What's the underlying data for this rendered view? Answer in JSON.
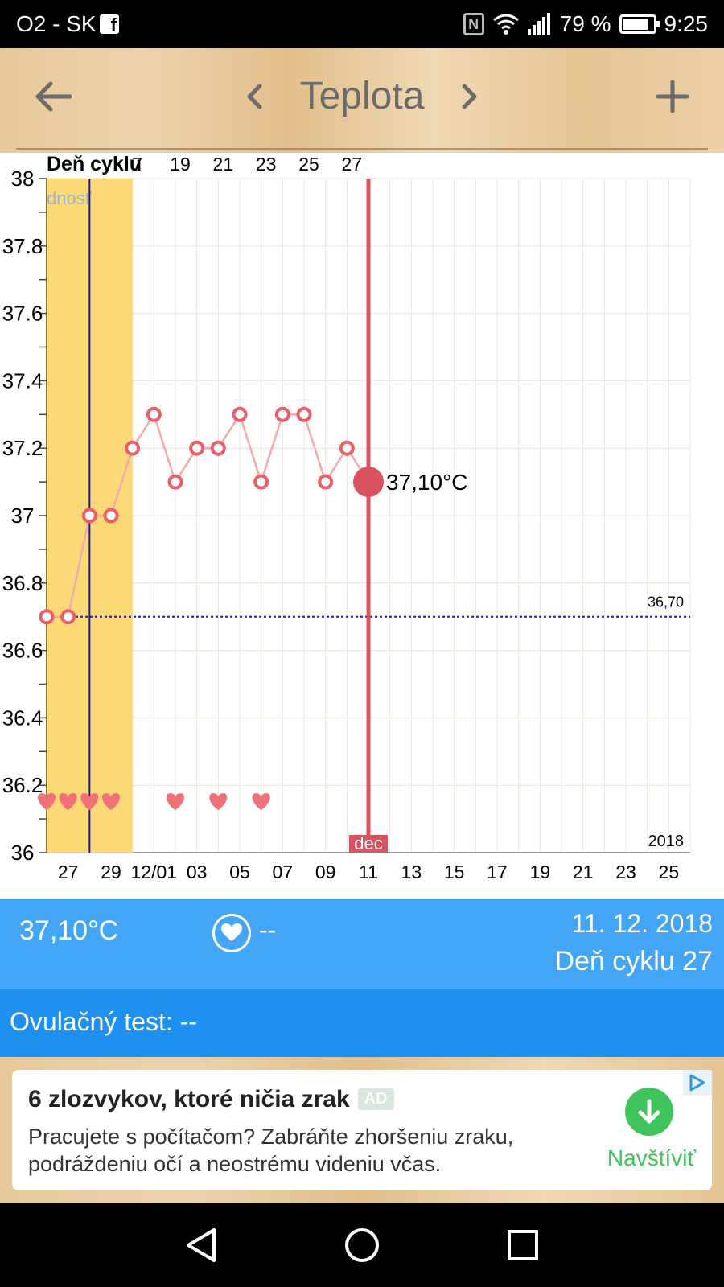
{
  "status_bar": {
    "carrier": "O2 - SK",
    "battery_percent": "79 %",
    "battery_level": 0.79,
    "time": "9:25",
    "icons": [
      "facebook-icon",
      "nfc-icon",
      "wifi-icon",
      "signal-icon",
      "battery-icon"
    ]
  },
  "toolbar": {
    "title": "Teplota",
    "back_icon": "arrow-left-icon",
    "prev_icon": "chevron-left-icon",
    "next_icon": "chevron-right-icon",
    "add_icon": "plus-icon"
  },
  "chart_data": {
    "type": "line",
    "top_label": "Deň cyklu",
    "cycle_day_labels": [
      "7",
      "19",
      "21",
      "23",
      "25",
      "27"
    ],
    "fertile_label": "dnosť",
    "ylim": [
      36,
      38
    ],
    "y_ticks": [
      "38",
      "37.8",
      "37.6",
      "37.4",
      "37.2",
      "37",
      "36.8",
      "36.6",
      "36.4",
      "36.2",
      "36"
    ],
    "x_tick_labels": [
      "27",
      "29",
      "12/01",
      "03",
      "05",
      "07",
      "09",
      "11",
      "13",
      "15",
      "17",
      "19",
      "21",
      "23",
      "25"
    ],
    "month_label": "dec",
    "year_label": "2018",
    "coverline_value": 36.7,
    "coverline_label": "36,70",
    "selected_label": "37,10°C",
    "series": [
      {
        "x_day": [
          26,
          27,
          28,
          29,
          30,
          31,
          32,
          33,
          34,
          35,
          36,
          37,
          38,
          39,
          40,
          41
        ],
        "values": [
          36.7,
          36.7,
          37.0,
          37.0,
          37.2,
          37.3,
          37.1,
          37.2,
          37.2,
          37.3,
          37.1,
          37.3,
          37.3,
          37.1,
          37.2,
          37.1
        ]
      }
    ],
    "hearts_x_day": [
      26,
      27,
      28,
      29,
      32,
      34,
      36
    ],
    "selected_x_day": 41,
    "fertile_range_x_day": [
      26,
      29
    ],
    "ovulation_x_day": 28,
    "x_range_day": [
      26,
      56
    ],
    "colors": {
      "line": "#f4a9aa",
      "point": "#ee5c66",
      "selected": "#d9535f",
      "fertile": "#fbd976",
      "coverline": "#1f1f8f",
      "ovulation": "#1a1aa0"
    }
  },
  "info_bar": {
    "temperature": "37,10°C",
    "sex_value": "--",
    "date": "11. 12. 2018",
    "cycle_day": "Deň cyklu 27"
  },
  "ovulation_test": {
    "label": "Ovulačný test: --"
  },
  "ad": {
    "title": "6 zlozvykov, ktoré ničia zrak",
    "badge": "AD",
    "body": "Pracujete s počítačom? Zabráňte zhoršeniu zraku, podráždeniu očí a neostrému videniu včas.",
    "action": "Navštíviť"
  },
  "nav_bar": {
    "icons": [
      "back-triangle-icon",
      "home-circle-icon",
      "recents-square-icon"
    ]
  }
}
